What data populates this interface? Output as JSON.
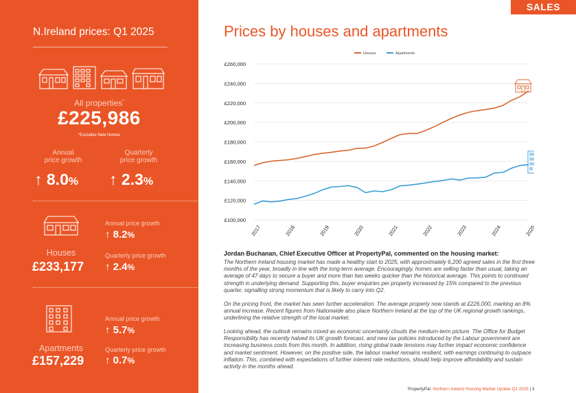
{
  "left_panel": {
    "title": "N.Ireland prices: Q1 2025",
    "all": {
      "label": "All properties",
      "marker": "*",
      "value": "£225,986",
      "note": "*Excludes New Homes"
    },
    "annual": {
      "label_line1": "Annual",
      "label_line2": "price growth",
      "value": "8.0",
      "unit": "%"
    },
    "quarterly": {
      "label_line1": "Quarterly",
      "label_line2": "price growth",
      "value": "2.3",
      "unit": "%"
    },
    "houses": {
      "label": "Houses",
      "value": "£233,177",
      "annual_label": "Annual price growth",
      "annual_value": "8.2",
      "quarterly_label": "Quarterly price growth",
      "quarterly_value": "2.4",
      "unit": "%"
    },
    "apartments": {
      "label": "Apartments",
      "value": "£157,229",
      "annual_label": "Annual price growth",
      "annual_value": "5.7",
      "quarterly_label": "Quarterly price growth",
      "quarterly_value": "0.7",
      "unit": "%"
    }
  },
  "badge": "SALES",
  "chart_title": "Prices by houses and apartments",
  "chart_data": {
    "type": "line",
    "title": "Prices by houses and apartments",
    "legend_placement": "top-center",
    "grid": true,
    "ylim": [
      100000,
      260000
    ],
    "yticks": [
      "£100,000",
      "£120,000",
      "£140,000",
      "£160,000",
      "£180,000",
      "£200,000",
      "£220,000",
      "£240,000",
      "£260,000"
    ],
    "ytick_values": [
      100000,
      120000,
      140000,
      160000,
      180000,
      200000,
      220000,
      240000,
      260000
    ],
    "xticks": [
      "2017",
      "2018",
      "2019",
      "2020",
      "2021",
      "2022",
      "2023",
      "2024",
      "2025"
    ],
    "xlim": [
      2017.0,
      2025.0
    ],
    "series": [
      {
        "name": "Houses",
        "color": "#d9652e",
        "x": [
          2017.0,
          2017.25,
          2017.5,
          2017.75,
          2018.0,
          2018.25,
          2018.5,
          2018.75,
          2019.0,
          2019.25,
          2019.5,
          2019.75,
          2020.0,
          2020.25,
          2020.5,
          2020.75,
          2021.0,
          2021.25,
          2021.5,
          2021.75,
          2022.0,
          2022.25,
          2022.5,
          2022.75,
          2023.0,
          2023.25,
          2023.5,
          2023.75,
          2024.0,
          2024.25,
          2024.5,
          2024.75,
          2025.0
        ],
        "values": [
          155800,
          158600,
          160200,
          161000,
          161700,
          163000,
          165000,
          167000,
          168300,
          169300,
          170600,
          171400,
          173400,
          173600,
          175800,
          179600,
          183600,
          187400,
          188600,
          188700,
          191700,
          195600,
          200000,
          204000,
          207600,
          210400,
          212000,
          213200,
          214700,
          217400,
          222600,
          226400,
          232300
        ]
      },
      {
        "name": "Apartments",
        "color": "#3a9dd3",
        "x": [
          2017.0,
          2017.25,
          2017.5,
          2017.75,
          2018.0,
          2018.25,
          2018.5,
          2018.75,
          2019.0,
          2019.25,
          2019.5,
          2019.75,
          2020.0,
          2020.25,
          2020.5,
          2020.75,
          2021.0,
          2021.25,
          2021.5,
          2021.75,
          2022.0,
          2022.25,
          2022.5,
          2022.75,
          2023.0,
          2023.25,
          2023.5,
          2023.75,
          2024.0,
          2024.25,
          2024.5,
          2024.75,
          2025.0
        ],
        "values": [
          116000,
          119300,
          118500,
          119200,
          120900,
          121900,
          124300,
          127100,
          130900,
          133600,
          134200,
          135100,
          133300,
          127900,
          129700,
          128900,
          131000,
          134800,
          135500,
          136600,
          137900,
          139300,
          140400,
          142000,
          140800,
          142900,
          143100,
          143800,
          148100,
          148600,
          152900,
          155800,
          156600
        ]
      }
    ]
  },
  "commentary": {
    "heading": "Jordan Buchanan, Chief Executive Officer at PropertyPal, commented on the housing market:",
    "paragraphs": [
      "The Northern Ireland housing market has made a healthy start to 2025, with approximately 6,200 agreed sales in the first three months of the year, broadly in line with the long-term average. Encouragingly, homes are selling faster than usual, taking an average of 47 days to secure a buyer and more than two weeks quicker than the historical average. This points to continued strength in underlying demand. Supporting this, buyer enquiries per property increased by 15% compared to the previous quarter, signalling strong momentum that is likely to carry into Q2.",
      "On the pricing front, the market has seen further acceleration. The average property now stands at £226,000, marking an 8% annual increase. Recent figures from Nationwide also place Northern Ireland at the top of the UK regional growth rankings, underlining the relative strength of the local market.",
      "Looking ahead, the outlook remains mixed as economic uncertainty clouds the medium-term picture. The Office for Budget Responsibility has recently halved its UK growth forecast, and new tax policies introduced by the Labour government are increasing business costs from this month. In addition, rising global trade tensions may further impact economic confidence and market sentiment. However, on the positive side, the labour market remains resilient, with earnings continuing to outpace inflation. This, combined with expectations of further interest rate reductions, should help improve affordability and sustain activity in the months ahead."
    ]
  },
  "footer": {
    "brand": "PropertyPal:",
    "report": "Northern Ireland Housing Market Update Q1 2025",
    "separator": "|",
    "page": "3"
  },
  "colors": {
    "accent": "#ea5527",
    "houses": "#d9652e",
    "apartments": "#3a9dd3"
  },
  "icons": [
    "house-row-icon",
    "house-icon",
    "apartment-block-icon"
  ]
}
